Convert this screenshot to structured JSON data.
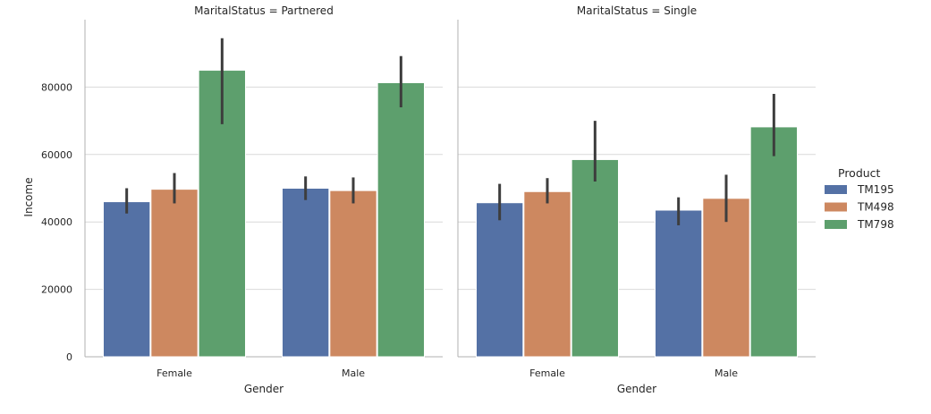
{
  "chart_data": {
    "type": "bar",
    "ylabel": "Income",
    "xlabel": "Gender",
    "ylim": [
      0,
      100000
    ],
    "yticks": [
      0,
      20000,
      40000,
      60000,
      80000
    ],
    "grid": "horizontal",
    "legend_placement": "right",
    "legend": {
      "title": "Product",
      "items": [
        {
          "name": "TM195",
          "color": "#5471a5"
        },
        {
          "name": "TM498",
          "color": "#cd8860"
        },
        {
          "name": "TM798",
          "color": "#5d9f6d"
        }
      ]
    },
    "categories": [
      "Female",
      "Male"
    ],
    "panels": [
      {
        "title": "MaritalStatus = Partnered",
        "series": [
          {
            "name": "TM195",
            "values": [
              46000,
              50000
            ],
            "ci_low": [
              42500,
              46500
            ],
            "ci_high": [
              50000,
              53500
            ]
          },
          {
            "name": "TM498",
            "values": [
              49700,
              49300
            ],
            "ci_low": [
              45500,
              45500
            ],
            "ci_high": [
              54500,
              53200
            ]
          },
          {
            "name": "TM798",
            "values": [
              85000,
              81300
            ],
            "ci_low": [
              69000,
              74000
            ],
            "ci_high": [
              94500,
              89200
            ]
          }
        ]
      },
      {
        "title": "MaritalStatus = Single",
        "series": [
          {
            "name": "TM195",
            "values": [
              45700,
              43500
            ],
            "ci_low": [
              40500,
              39000
            ],
            "ci_high": [
              51300,
              47300
            ]
          },
          {
            "name": "TM498",
            "values": [
              49000,
              47000
            ],
            "ci_low": [
              45500,
              40000
            ],
            "ci_high": [
              53000,
              54000
            ]
          },
          {
            "name": "TM798",
            "values": [
              58500,
              68200
            ],
            "ci_low": [
              52000,
              59500
            ],
            "ci_high": [
              70000,
              78000
            ]
          }
        ]
      }
    ]
  }
}
